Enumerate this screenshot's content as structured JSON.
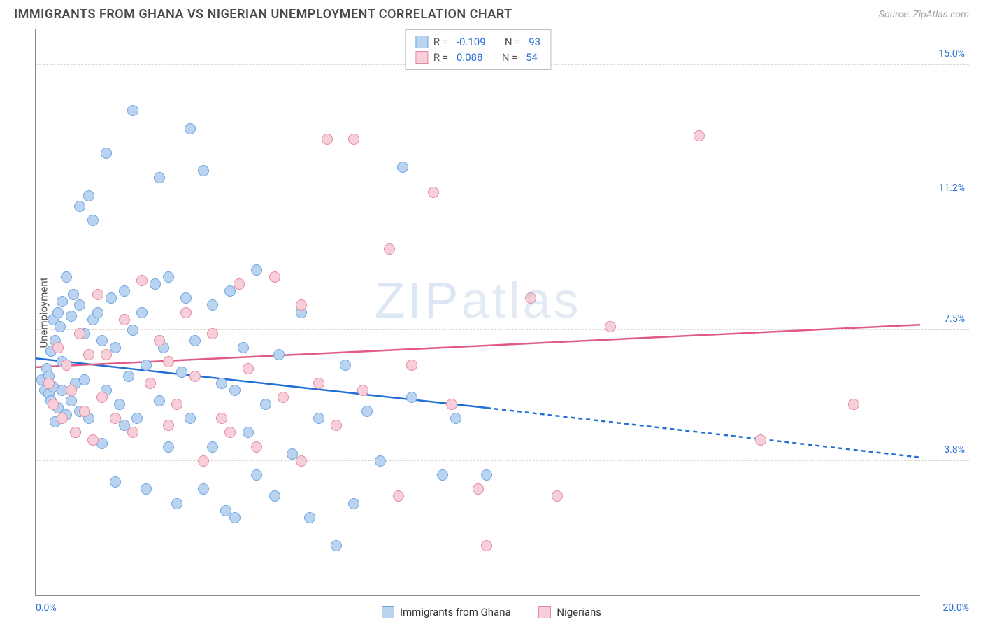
{
  "title": "IMMIGRANTS FROM GHANA VS NIGERIAN UNEMPLOYMENT CORRELATION CHART",
  "source": "Source: ZipAtlas.com",
  "watermark": {
    "bold": "ZIP",
    "light": "atlas"
  },
  "ylabel": "Unemployment",
  "series": [
    {
      "key": "ghana",
      "name": "Immigrants from Ghana",
      "fill": "#b9d3f0",
      "stroke": "#6ea6e0",
      "r_value": "-0.109",
      "n_value": "93",
      "trend": {
        "color": "#1f6fd6",
        "width": 2.5,
        "solid_start": [
          0,
          6.7
        ],
        "solid_end": [
          10.2,
          5.3
        ],
        "dash_start": [
          10.2,
          5.3
        ],
        "dash_end": [
          20,
          3.9
        ]
      }
    },
    {
      "key": "nigerians",
      "name": "Nigerians",
      "fill": "#f6cfd8",
      "stroke": "#e589a3",
      "r_value": "0.088",
      "n_value": "54",
      "trend": {
        "color": "#e05a85",
        "width": 2.5,
        "solid_start": [
          0,
          6.45
        ],
        "solid_end": [
          20,
          7.65
        ]
      }
    }
  ],
  "axes": {
    "xlim": [
      0,
      20
    ],
    "ylim": [
      0,
      16
    ],
    "x_ticks": [
      {
        "v": 0,
        "label": "0.0%"
      },
      {
        "v": 20,
        "label": "20.0%"
      }
    ],
    "y_gridlines": [
      {
        "v": 3.8,
        "label": "3.8%"
      },
      {
        "v": 7.5,
        "label": "7.5%"
      },
      {
        "v": 11.2,
        "label": "11.2%"
      },
      {
        "v": 15.0,
        "label": "15.0%"
      }
    ]
  },
  "legend_stats": {
    "r_label": "R = ",
    "n_label": "N = "
  },
  "points": {
    "ghana": [
      [
        0.15,
        6.1
      ],
      [
        0.2,
        5.8
      ],
      [
        0.25,
        6.4
      ],
      [
        0.3,
        5.7
      ],
      [
        0.3,
        6.2
      ],
      [
        0.35,
        5.5
      ],
      [
        0.35,
        6.9
      ],
      [
        0.4,
        5.9
      ],
      [
        0.4,
        7.8
      ],
      [
        0.45,
        4.9
      ],
      [
        0.45,
        7.2
      ],
      [
        0.5,
        8.0
      ],
      [
        0.5,
        5.3
      ],
      [
        0.55,
        7.6
      ],
      [
        0.6,
        5.8
      ],
      [
        0.6,
        6.6
      ],
      [
        0.6,
        8.3
      ],
      [
        0.7,
        5.1
      ],
      [
        0.7,
        9.0
      ],
      [
        0.8,
        7.9
      ],
      [
        0.8,
        5.5
      ],
      [
        0.85,
        8.5
      ],
      [
        0.9,
        6.0
      ],
      [
        0.9,
        4.6
      ],
      [
        1.0,
        8.2
      ],
      [
        1.0,
        5.2
      ],
      [
        1.0,
        11.0
      ],
      [
        1.1,
        7.4
      ],
      [
        1.1,
        6.1
      ],
      [
        1.2,
        11.3
      ],
      [
        1.2,
        5.0
      ],
      [
        1.3,
        7.8
      ],
      [
        1.3,
        10.6
      ],
      [
        1.4,
        8.0
      ],
      [
        1.5,
        4.3
      ],
      [
        1.5,
        7.2
      ],
      [
        1.6,
        5.8
      ],
      [
        1.6,
        12.5
      ],
      [
        1.7,
        8.4
      ],
      [
        1.8,
        7.0
      ],
      [
        1.8,
        3.2
      ],
      [
        1.9,
        5.4
      ],
      [
        2.0,
        8.6
      ],
      [
        2.0,
        4.8
      ],
      [
        2.1,
        6.2
      ],
      [
        2.2,
        13.7
      ],
      [
        2.2,
        7.5
      ],
      [
        2.3,
        5.0
      ],
      [
        2.4,
        8.0
      ],
      [
        2.5,
        3.0
      ],
      [
        2.5,
        6.5
      ],
      [
        2.7,
        8.8
      ],
      [
        2.8,
        5.5
      ],
      [
        2.8,
        11.8
      ],
      [
        2.9,
        7.0
      ],
      [
        3.0,
        4.2
      ],
      [
        3.0,
        9.0
      ],
      [
        3.2,
        2.6
      ],
      [
        3.3,
        6.3
      ],
      [
        3.4,
        8.4
      ],
      [
        3.5,
        5.0
      ],
      [
        3.5,
        13.2
      ],
      [
        3.6,
        7.2
      ],
      [
        3.8,
        3.0
      ],
      [
        3.8,
        12.0
      ],
      [
        4.0,
        8.2
      ],
      [
        4.0,
        4.2
      ],
      [
        4.2,
        6.0
      ],
      [
        4.3,
        2.4
      ],
      [
        4.4,
        8.6
      ],
      [
        4.5,
        5.8
      ],
      [
        4.5,
        2.2
      ],
      [
        4.7,
        7.0
      ],
      [
        4.8,
        4.6
      ],
      [
        5.0,
        9.2
      ],
      [
        5.0,
        3.4
      ],
      [
        5.2,
        5.4
      ],
      [
        5.4,
        2.8
      ],
      [
        5.5,
        6.8
      ],
      [
        5.8,
        4.0
      ],
      [
        6.0,
        8.0
      ],
      [
        6.2,
        2.2
      ],
      [
        6.4,
        5.0
      ],
      [
        6.8,
        1.4
      ],
      [
        7.0,
        6.5
      ],
      [
        7.2,
        2.6
      ],
      [
        7.5,
        5.2
      ],
      [
        7.8,
        3.8
      ],
      [
        8.3,
        12.1
      ],
      [
        8.5,
        5.6
      ],
      [
        9.2,
        3.4
      ],
      [
        9.5,
        5.0
      ],
      [
        10.2,
        3.4
      ]
    ],
    "nigerians": [
      [
        0.3,
        6.0
      ],
      [
        0.4,
        5.4
      ],
      [
        0.5,
        7.0
      ],
      [
        0.6,
        5.0
      ],
      [
        0.7,
        6.5
      ],
      [
        0.8,
        5.8
      ],
      [
        0.9,
        4.6
      ],
      [
        1.0,
        7.4
      ],
      [
        1.1,
        5.2
      ],
      [
        1.2,
        6.8
      ],
      [
        1.3,
        4.4
      ],
      [
        1.4,
        8.5
      ],
      [
        1.5,
        5.6
      ],
      [
        1.6,
        6.8
      ],
      [
        1.8,
        5.0
      ],
      [
        2.0,
        7.8
      ],
      [
        2.2,
        4.6
      ],
      [
        2.4,
        8.9
      ],
      [
        2.6,
        6.0
      ],
      [
        2.8,
        7.2
      ],
      [
        3.0,
        4.8
      ],
      [
        3.0,
        6.6
      ],
      [
        3.2,
        5.4
      ],
      [
        3.4,
        8.0
      ],
      [
        3.6,
        6.2
      ],
      [
        3.8,
        3.8
      ],
      [
        4.0,
        7.4
      ],
      [
        4.2,
        5.0
      ],
      [
        4.4,
        4.6
      ],
      [
        4.6,
        8.8
      ],
      [
        4.8,
        6.4
      ],
      [
        5.0,
        4.2
      ],
      [
        5.4,
        9.0
      ],
      [
        5.6,
        5.6
      ],
      [
        6.0,
        8.2
      ],
      [
        6.0,
        3.8
      ],
      [
        6.4,
        6.0
      ],
      [
        6.6,
        12.9
      ],
      [
        6.8,
        4.8
      ],
      [
        7.2,
        12.9
      ],
      [
        7.4,
        5.8
      ],
      [
        8.0,
        9.8
      ],
      [
        8.2,
        2.8
      ],
      [
        8.5,
        6.5
      ],
      [
        9.0,
        11.4
      ],
      [
        9.4,
        5.4
      ],
      [
        10.0,
        3.0
      ],
      [
        10.2,
        1.4
      ],
      [
        11.2,
        8.4
      ],
      [
        11.8,
        2.8
      ],
      [
        13.0,
        7.6
      ],
      [
        15.0,
        13.0
      ],
      [
        16.4,
        4.4
      ],
      [
        18.5,
        5.4
      ]
    ]
  }
}
